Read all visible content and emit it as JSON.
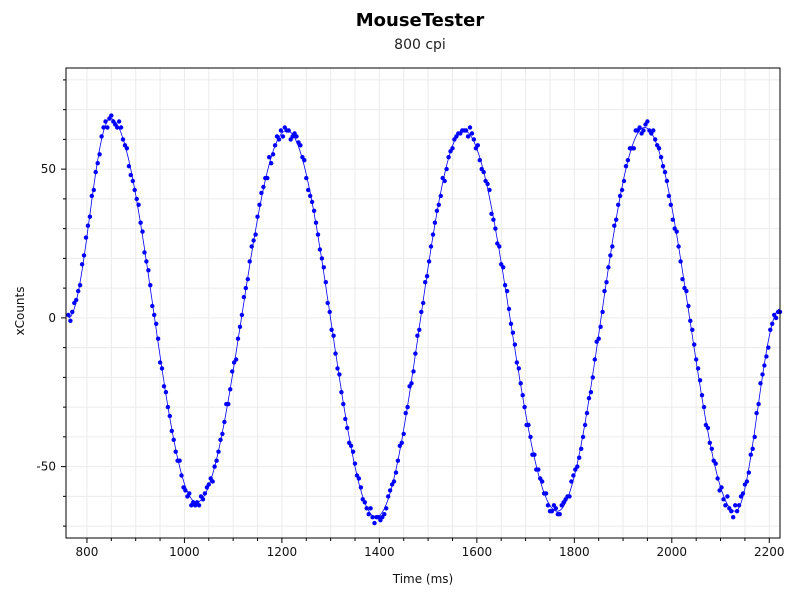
{
  "chart_data": {
    "type": "scatter",
    "title": "MouseTester",
    "subtitle": "800 cpi",
    "xlabel": "Time (ms)",
    "ylabel": "xCounts",
    "xlim": [
      757,
      2222
    ],
    "ylim": [
      -74,
      84
    ],
    "x_ticks": [
      800,
      1000,
      1200,
      1400,
      1600,
      1800,
      2000,
      2200
    ],
    "y_ticks": [
      -50,
      0,
      50
    ],
    "grid": true,
    "legend": "none",
    "point_color": "#0000ff",
    "line_color": "#0000ff",
    "series": [
      {
        "style": "points with smooth fit line",
        "wave": {
          "first_x": 762,
          "spacing_ms": 4,
          "period_ms": 366,
          "phase_x": 762,
          "peaks": [
            {
              "x": 848,
              "y": 67
            },
            {
              "x": 1210,
              "y": 63
            },
            {
              "x": 1573,
              "y": 63
            },
            {
              "x": 1944,
              "y": 64
            }
          ],
          "troughs": [
            {
              "x": 1025,
              "y": -62
            },
            {
              "x": 1393,
              "y": -67
            },
            {
              "x": 1765,
              "y": -65
            },
            {
              "x": 2130,
              "y": -65
            }
          ],
          "last_x": 2222,
          "last_y": 3
        }
      }
    ]
  }
}
